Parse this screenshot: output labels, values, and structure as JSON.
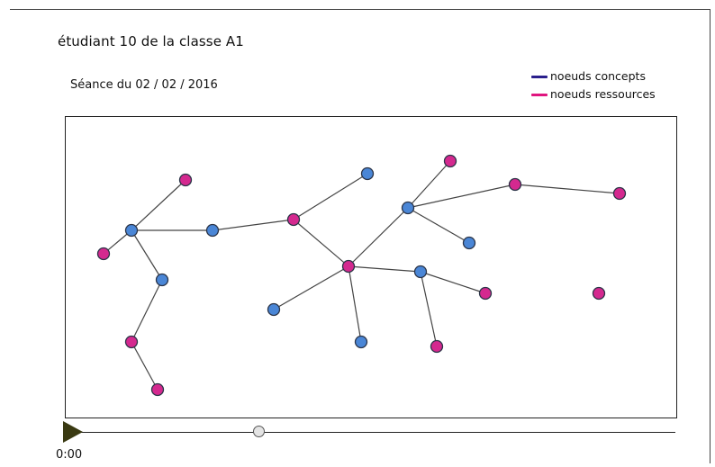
{
  "header": {
    "title": "étudiant 10 de la classe A1",
    "session": "Séance du 02 / 02 / 2016"
  },
  "legend": [
    {
      "label": "noeuds concepts",
      "color": "#2a1f8c"
    },
    {
      "label": "noeuds ressources",
      "color": "#e0157f"
    }
  ],
  "colors": {
    "concept_fill": "#4a86d6",
    "resource_fill": "#d4298f",
    "node_stroke": "#2b3447",
    "edge": "#444444"
  },
  "graph": {
    "nodes": [
      {
        "id": "c1",
        "type": "concept"
      },
      {
        "id": "r1",
        "type": "resource"
      },
      {
        "id": "r2",
        "type": "resource"
      },
      {
        "id": "c2",
        "type": "concept"
      },
      {
        "id": "r3",
        "type": "resource"
      },
      {
        "id": "r4",
        "type": "resource"
      },
      {
        "id": "c3",
        "type": "concept"
      },
      {
        "id": "r5",
        "type": "resource"
      },
      {
        "id": "c4",
        "type": "concept"
      },
      {
        "id": "r6",
        "type": "resource"
      },
      {
        "id": "c5",
        "type": "concept"
      },
      {
        "id": "c6",
        "type": "concept"
      },
      {
        "id": "c7",
        "type": "concept"
      },
      {
        "id": "r7",
        "type": "resource"
      },
      {
        "id": "c8",
        "type": "concept"
      },
      {
        "id": "r8",
        "type": "resource"
      },
      {
        "id": "r9",
        "type": "resource"
      },
      {
        "id": "r10",
        "type": "resource"
      },
      {
        "id": "c9",
        "type": "concept"
      },
      {
        "id": "r11",
        "type": "resource"
      },
      {
        "id": "r12",
        "type": "resource"
      }
    ],
    "edges": [
      [
        "c1",
        "r1"
      ],
      [
        "c1",
        "r2"
      ],
      [
        "c1",
        "c2"
      ],
      [
        "c2",
        "r3"
      ],
      [
        "r3",
        "r4"
      ],
      [
        "c1",
        "c3"
      ],
      [
        "r3",
        "c4"
      ],
      [
        "r5",
        "c4"
      ],
      [
        "r5",
        "c5"
      ],
      [
        "r5",
        "c6"
      ],
      [
        "r5",
        "c7"
      ],
      [
        "r5",
        "c8"
      ],
      [
        "c8",
        "r6"
      ],
      [
        "c8",
        "r7"
      ],
      [
        "c7",
        "r8"
      ],
      [
        "c7",
        "c9"
      ],
      [
        "r8",
        "r9"
      ],
      [
        "c3",
        "r10"
      ],
      [
        "r10",
        "r11"
      ]
    ]
  },
  "player": {
    "time": "0:00",
    "progress": 0.3
  }
}
